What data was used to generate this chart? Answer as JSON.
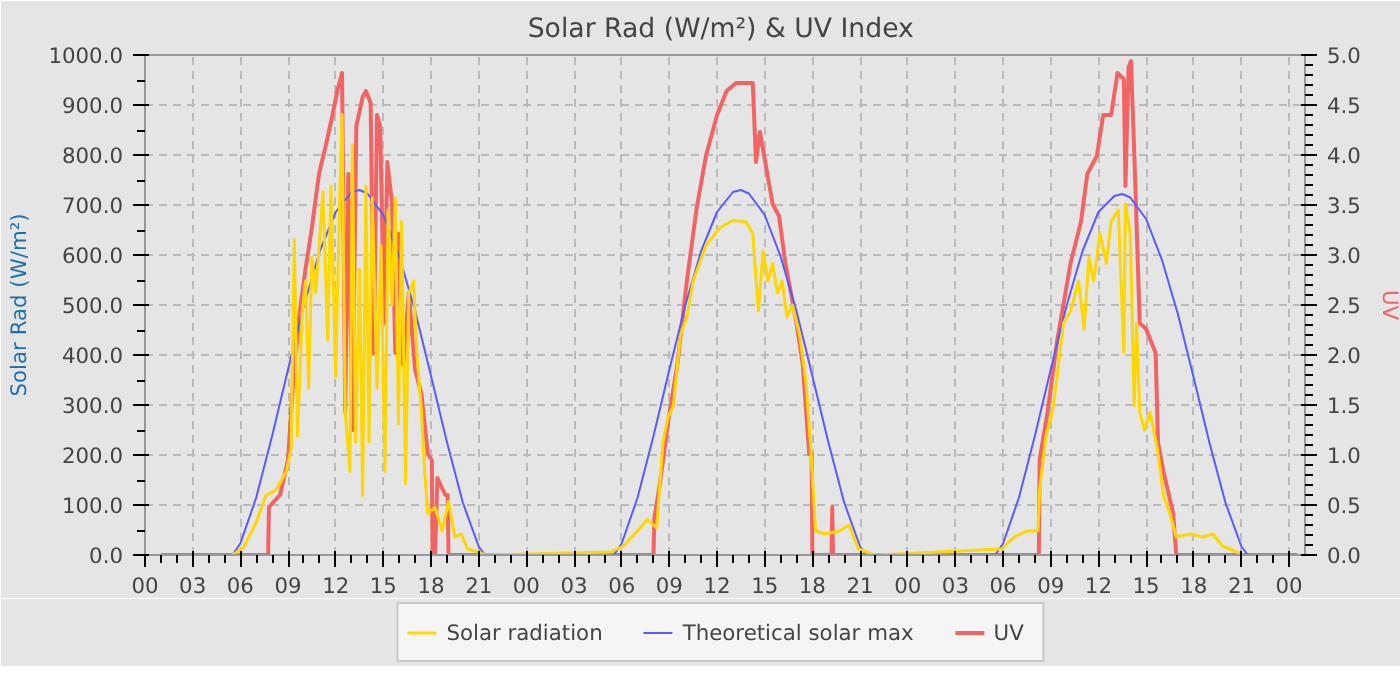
{
  "chart_data": {
    "type": "line",
    "title": "Solar Rad (W/m²) &  UV Index",
    "ylabel": "Solar Rad (W/m²)",
    "y2label": "UV",
    "xlim": [
      0,
      73
    ],
    "xticks": [
      {
        "value": 0,
        "label": "00"
      },
      {
        "value": 3,
        "label": "03"
      },
      {
        "value": 6,
        "label": "06"
      },
      {
        "value": 9,
        "label": "09"
      },
      {
        "value": 12,
        "label": "12"
      },
      {
        "value": 15,
        "label": "15"
      },
      {
        "value": 18,
        "label": "18"
      },
      {
        "value": 21,
        "label": "21"
      },
      {
        "value": 24,
        "label": "00"
      },
      {
        "value": 27,
        "label": "03"
      },
      {
        "value": 30,
        "label": "06"
      },
      {
        "value": 33,
        "label": "09"
      },
      {
        "value": 36,
        "label": "12"
      },
      {
        "value": 39,
        "label": "15"
      },
      {
        "value": 42,
        "label": "18"
      },
      {
        "value": 45,
        "label": "21"
      },
      {
        "value": 48,
        "label": "00"
      },
      {
        "value": 51,
        "label": "03"
      },
      {
        "value": 54,
        "label": "06"
      },
      {
        "value": 57,
        "label": "09"
      },
      {
        "value": 60,
        "label": "12"
      },
      {
        "value": 63,
        "label": "15"
      },
      {
        "value": 66,
        "label": "18"
      },
      {
        "value": 69,
        "label": "21"
      },
      {
        "value": 72,
        "label": "00"
      }
    ],
    "ylim": [
      0,
      1000
    ],
    "yticks": [
      {
        "value": 0,
        "label": "0.0"
      },
      {
        "value": 100,
        "label": "100.0"
      },
      {
        "value": 200,
        "label": "200.0"
      },
      {
        "value": 300,
        "label": "300.0"
      },
      {
        "value": 400,
        "label": "400.0"
      },
      {
        "value": 500,
        "label": "500.0"
      },
      {
        "value": 600,
        "label": "600.0"
      },
      {
        "value": 700,
        "label": "700.0"
      },
      {
        "value": 800,
        "label": "800.0"
      },
      {
        "value": 900,
        "label": "900.0"
      },
      {
        "value": 1000,
        "label": "1000.0"
      }
    ],
    "y2lim": [
      0,
      5
    ],
    "y2ticks": [
      {
        "value": 0,
        "label": "0.0"
      },
      {
        "value": 0.5,
        "label": "0.5"
      },
      {
        "value": 1,
        "label": "1.0"
      },
      {
        "value": 1.5,
        "label": "1.5"
      },
      {
        "value": 2,
        "label": "2.0"
      },
      {
        "value": 2.5,
        "label": "2.5"
      },
      {
        "value": 3,
        "label": "3.0"
      },
      {
        "value": 3.5,
        "label": "3.5"
      },
      {
        "value": 4,
        "label": "4.0"
      },
      {
        "value": 4.5,
        "label": "4.5"
      },
      {
        "value": 5,
        "label": "5.0"
      }
    ],
    "grid": true,
    "legend": "bottom",
    "series": [
      {
        "name": "Solar radiation",
        "color": "#ffd700",
        "x": [
          5.5,
          6.2,
          7,
          7.6,
          8.25,
          8.9,
          9.2,
          9.4,
          9.6,
          9.9,
          10.1,
          10.3,
          10.5,
          10.75,
          11.2,
          11.5,
          11.7,
          12,
          12.2,
          12.4,
          12.6,
          12.9,
          13.05,
          13.25,
          13.5,
          13.7,
          13.9,
          14.1,
          14.3,
          14.6,
          14.85,
          15.1,
          15.3,
          15.55,
          15.75,
          15.95,
          16.15,
          16.4,
          16.6,
          16.9,
          17.1,
          17.4,
          17.6,
          17.8,
          18.25,
          18.7,
          19.1,
          19.5,
          19.9,
          20.3,
          20.95,
          21.4,
          29.3,
          30.1,
          31,
          31.6,
          32.2,
          32.6,
          32.9,
          33.25,
          33.7,
          34.1,
          34.5,
          35.3,
          36.2,
          37,
          37.8,
          38.25,
          38.6,
          38.9,
          39.2,
          39.5,
          39.8,
          40.1,
          40.4,
          40.75,
          41.2,
          41.6,
          41.9,
          42.2,
          42.8,
          43.7,
          44.3,
          44.9,
          45.75,
          46,
          53.9,
          54.7,
          55.5,
          56.2,
          56.3,
          56.7,
          57.1,
          57.4,
          57.8,
          58.25,
          58.75,
          59.1,
          59.4,
          59.7,
          60.1,
          60.5,
          60.8,
          61.25,
          61.6,
          61.7,
          62,
          62.25,
          62.4,
          62.6,
          62.9,
          63.25,
          63.7,
          64.1,
          64.5,
          64.9,
          65.75,
          66.6,
          67.2,
          67.8,
          68.7,
          69.1
        ],
        "values": [
          0,
          15,
          65,
          119,
          130,
          167,
          214,
          631,
          238,
          488,
          548,
          333,
          595,
          524,
          726,
          429,
          738,
          357,
          643,
          881,
          286,
          167,
          821,
          226,
          571,
          119,
          738,
          226,
          714,
          333,
          619,
          167,
          690,
          500,
          714,
          262,
          667,
          143,
          524,
          548,
          405,
          286,
          167,
          83,
          95,
          48,
          107,
          36,
          42,
          12,
          6,
          0,
          6,
          18,
          48,
          71,
          54,
          226,
          274,
          298,
          440,
          476,
          548,
          619,
          655,
          669,
          667,
          643,
          488,
          607,
          548,
          583,
          524,
          548,
          476,
          500,
          440,
          345,
          214,
          48,
          42,
          48,
          60,
          12,
          2,
          0,
          12,
          36,
          48,
          48,
          131,
          238,
          286,
          357,
          464,
          488,
          548,
          452,
          595,
          548,
          643,
          583,
          667,
          690,
          405,
          702,
          643,
          298,
          464,
          286,
          250,
          286,
          214,
          119,
          83,
          36,
          42,
          36,
          42,
          18,
          6,
          0
        ]
      },
      {
        "name": "Theoretical solar max",
        "color": "#5a5aff",
        "x": [
          1,
          5.5,
          6,
          7,
          8,
          9,
          10,
          11,
          12,
          13,
          13.5,
          14,
          15,
          16,
          17,
          18,
          19,
          20,
          21,
          21.4,
          29.5,
          30,
          31,
          32,
          33,
          34,
          35,
          36,
          37,
          37.5,
          38,
          39,
          40,
          41,
          42,
          43,
          44,
          45,
          45.4,
          53.5,
          54,
          55,
          56,
          57,
          58,
          59,
          60,
          61,
          61.5,
          62,
          63,
          64,
          65,
          66,
          67,
          68,
          69,
          69.4,
          72.5
        ],
        "values": [
          0,
          0,
          23,
          115,
          238,
          371,
          499,
          608,
          686,
          726,
          730,
          723,
          680,
          597,
          488,
          358,
          226,
          105,
          17,
          0,
          0,
          23,
          115,
          238,
          371,
          499,
          608,
          686,
          726,
          730,
          723,
          680,
          597,
          488,
          358,
          226,
          105,
          17,
          0,
          0,
          23,
          115,
          238,
          371,
          499,
          608,
          686,
          718,
          722,
          715,
          672,
          590,
          482,
          354,
          223,
          104,
          17,
          0,
          0
        ]
      },
      {
        "name": "UV",
        "color": "#f26464",
        "axis": "y2",
        "x": [
          1,
          7.75,
          7.8,
          8.5,
          9.0,
          9.3,
          9.7,
          10.1,
          10.5,
          10.95,
          11.4,
          11.8,
          12.1,
          12.4,
          12.6,
          12.8,
          13.05,
          13.3,
          13.7,
          13.9,
          14.2,
          14.4,
          14.6,
          14.8,
          15.05,
          15.25,
          15.55,
          15.75,
          15.95,
          16.25,
          16.6,
          17,
          17.4,
          17.8,
          18.05,
          18.1,
          18.25,
          18.4,
          18.9,
          19.05,
          19.1,
          32,
          32.05,
          32.4,
          32.9,
          33.5,
          34.1,
          34.7,
          35.3,
          36,
          36.6,
          37.2,
          38.25,
          38.45,
          38.7,
          39.1,
          39.5,
          39.9,
          40.3,
          41,
          41.4,
          41.8,
          41.95,
          42,
          43.2,
          43.25,
          43.3,
          56.25,
          56.3,
          56.8,
          57.4,
          58.25,
          58.9,
          59.3,
          59.9,
          60.3,
          60.8,
          61.2,
          61.6,
          61.7,
          61.9,
          62.05,
          62.3,
          62.6,
          63,
          63.6,
          63.75,
          64.1,
          64.7,
          64.9,
          72.5
        ],
        "values": [
          0,
          0,
          0.48,
          0.6,
          0.95,
          1.67,
          2.38,
          2.86,
          3.27,
          3.81,
          4.11,
          4.4,
          4.64,
          4.82,
          1.43,
          3.81,
          1.25,
          4.29,
          4.58,
          4.64,
          4.52,
          2.02,
          4.4,
          4.29,
          2.32,
          3.93,
          3.51,
          2.02,
          3.21,
          1.9,
          2.62,
          1.85,
          1.61,
          1.01,
          0.95,
          0,
          0,
          0.77,
          0.6,
          0.6,
          0,
          0,
          0.36,
          0.71,
          1.31,
          1.9,
          2.74,
          3.45,
          3.99,
          4.4,
          4.64,
          4.72,
          4.72,
          3.93,
          4.23,
          3.87,
          3.51,
          3.39,
          2.92,
          2.32,
          1.9,
          1.01,
          1.01,
          0,
          0,
          0.48,
          0,
          0,
          0.95,
          1.43,
          2.14,
          2.92,
          3.33,
          3.81,
          3.99,
          4.4,
          4.4,
          4.82,
          4.76,
          3.69,
          4.88,
          4.94,
          3.81,
          2.32,
          2.26,
          2.02,
          1.13,
          0.83,
          0.42,
          0,
          0
        ]
      }
    ]
  }
}
